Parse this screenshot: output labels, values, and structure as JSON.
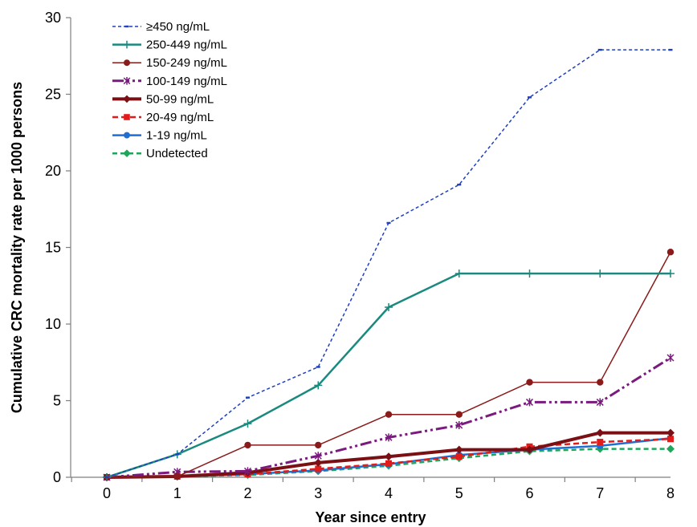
{
  "chart_data": {
    "type": "line",
    "xlabel": "Year since entry",
    "ylabel": "Cumulative CRC mortality rate per 1000 persons",
    "x": [
      0,
      1,
      2,
      3,
      4,
      5,
      6,
      7,
      8
    ],
    "xlim": [
      0,
      8
    ],
    "ylim": [
      0,
      30
    ],
    "yticks": [
      0,
      5,
      10,
      15,
      20,
      25,
      30
    ],
    "grid": false,
    "legend_position": "top-left",
    "series": [
      {
        "name": "≥450 ng/mL",
        "values": [
          0,
          1.5,
          5.2,
          7.2,
          16.6,
          19.1,
          24.8,
          27.9,
          27.9
        ],
        "color": "#1f3fbf",
        "dash": "4,3",
        "width": 1.5,
        "marker": "dash"
      },
      {
        "name": "250-449  ng/mL",
        "values": [
          0,
          1.5,
          3.5,
          6.0,
          11.1,
          13.3,
          13.3,
          13.3,
          13.3
        ],
        "color": "#1a8a7e",
        "dash": "",
        "width": 2.5,
        "marker": "plus"
      },
      {
        "name": "150-249  ng/mL",
        "values": [
          0,
          0.05,
          2.1,
          2.1,
          4.1,
          4.1,
          6.2,
          6.2,
          14.7
        ],
        "color": "#8b1a1a",
        "dash": "",
        "width": 1.5,
        "marker": "circle"
      },
      {
        "name": "100-149  ng/mL",
        "values": [
          0,
          0.35,
          0.4,
          1.4,
          2.6,
          3.4,
          4.9,
          4.9,
          7.8
        ],
        "color": "#7b1a7e",
        "dash": "14,4,3,4,3,4",
        "width": 3,
        "marker": "asterisk"
      },
      {
        "name": "50-99  ng/mL",
        "values": [
          0,
          0.05,
          0.3,
          0.95,
          1.35,
          1.8,
          1.8,
          2.9,
          2.9
        ],
        "color": "#7a0f14",
        "dash": "",
        "width": 4,
        "marker": "diamond"
      },
      {
        "name": "20-49 ng/mL",
        "values": [
          0,
          0.05,
          0.2,
          0.55,
          0.9,
          1.35,
          2.0,
          2.3,
          2.5
        ],
        "color": "#e21b1b",
        "dash": "7,4",
        "width": 2.5,
        "marker": "square"
      },
      {
        "name": "1-19  ng/mL",
        "values": [
          0,
          0.05,
          0.2,
          0.45,
          0.85,
          1.45,
          1.8,
          2.05,
          2.55
        ],
        "color": "#1f6ed4",
        "dash": "",
        "width": 2.5,
        "marker": "circle"
      },
      {
        "name": "Undetected",
        "values": [
          0,
          0.05,
          0.15,
          0.4,
          0.75,
          1.25,
          1.7,
          1.85,
          1.85
        ],
        "color": "#1fa65a",
        "dash": "6,4",
        "width": 2.5,
        "marker": "diamond"
      }
    ]
  }
}
